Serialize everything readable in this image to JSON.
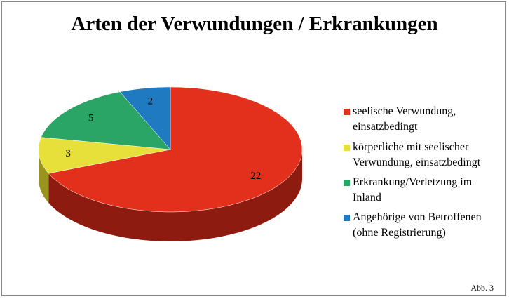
{
  "chart_data": {
    "type": "pie",
    "title": "Arten der Verwundungen / Erkrankungen",
    "categories": [
      "seelische Verwundung, einsatzbedingt",
      "körperliche mit seelischer Verwundung, einsatzbedingt",
      "Erkrankung/Verletzung im Inland",
      "Angehörige von Betroffenen (ohne Registrierung)"
    ],
    "values": [
      22,
      3,
      5,
      2
    ],
    "colors": [
      "#e3301c",
      "#e8e03a",
      "#2aa566",
      "#1f7ac1"
    ],
    "side_colors": [
      "#8e1b10",
      "#9a9320",
      "#186a40",
      "#124e7e"
    ],
    "legend": "right",
    "note": "Abb. 3"
  }
}
